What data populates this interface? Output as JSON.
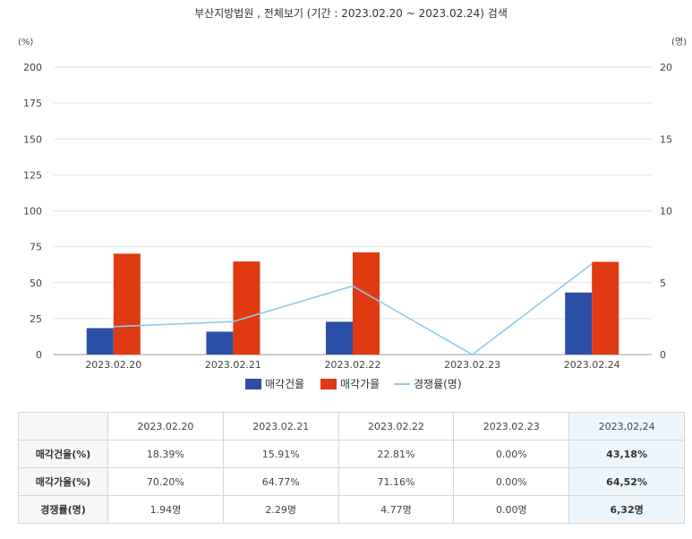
{
  "chart_data": {
    "type": "bar",
    "title": "부산지방법원 , 전체보기 (기간 : 2023.02.20 ~ 2023.02.24) 검색",
    "categories": [
      "2023.02.20",
      "2023.02.21",
      "2023.02.22",
      "2023.02.23",
      "2023.02.24"
    ],
    "left_axis": {
      "unit": "(%)",
      "range": [
        0,
        200
      ],
      "ticks": [
        0,
        25,
        50,
        75,
        100,
        125,
        150,
        175,
        200
      ]
    },
    "right_axis": {
      "unit": "(명)",
      "range": [
        0,
        20
      ],
      "ticks": [
        0,
        5,
        10,
        15,
        20
      ]
    },
    "series": [
      {
        "name": "매각건율",
        "type": "bar",
        "axis": "left",
        "color": "#2b4fa6",
        "values": [
          18.39,
          15.91,
          22.81,
          0.0,
          43.18
        ]
      },
      {
        "name": "매각가율",
        "type": "bar",
        "axis": "left",
        "color": "#e03a12",
        "values": [
          70.2,
          64.77,
          71.16,
          0.0,
          64.52
        ]
      },
      {
        "name": "경쟁률(명)",
        "type": "line",
        "axis": "right",
        "color": "#8ec9ef",
        "values": [
          1.94,
          2.29,
          4.77,
          0.0,
          6.32
        ]
      }
    ],
    "legend": "bottom-center",
    "grid": true
  },
  "table": {
    "headers": [
      "2023.02.20",
      "2023.02.21",
      "2023.02.22",
      "2023.02.23",
      "2023,02,24"
    ],
    "rows": [
      {
        "label": "매각건율(%)",
        "values": [
          "18.39%",
          "15.91%",
          "22.81%",
          "0.00%",
          "43,18%"
        ]
      },
      {
        "label": "매각가율(%)",
        "values": [
          "70.20%",
          "64.77%",
          "71.16%",
          "0.00%",
          "64,52%"
        ]
      },
      {
        "label": "경쟁률(명)",
        "values": [
          "1.94명",
          "2.29명",
          "4.77명",
          "0.00명",
          "6,32명"
        ]
      }
    ]
  }
}
